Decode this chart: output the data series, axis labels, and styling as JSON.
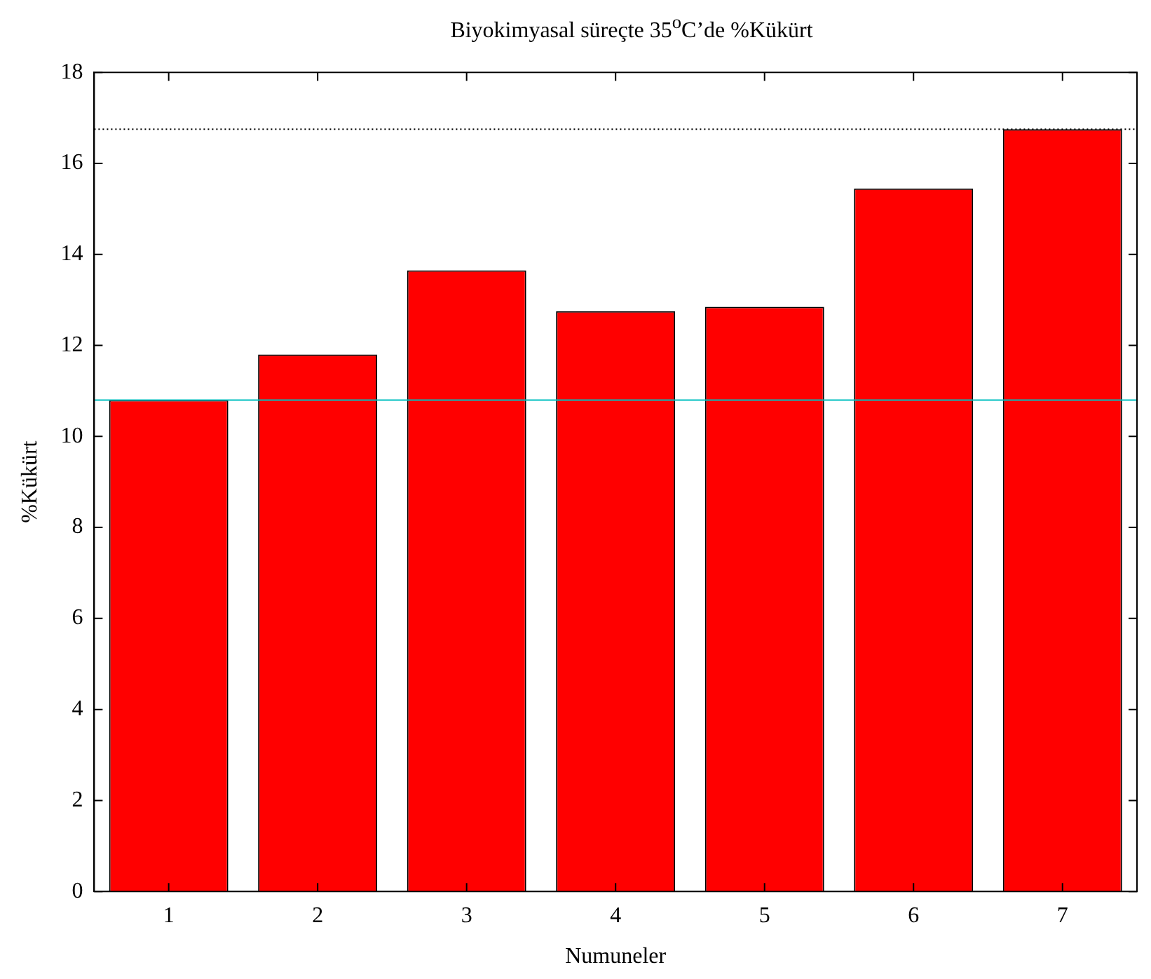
{
  "chart_data": {
    "type": "bar",
    "title": "Biyokimyasal süreçte 35$^{o}$C’de %Kükürt",
    "xlabel": "Numuneler",
    "ylabel": "%Kükürt",
    "categories": [
      "1",
      "2",
      "3",
      "4",
      "5",
      "6",
      "7"
    ],
    "values": [
      10.8,
      11.8,
      13.65,
      12.75,
      12.85,
      15.45,
      16.75
    ],
    "color": "#ff0000",
    "ylim": [
      0,
      18
    ],
    "yticks": [
      0,
      2,
      4,
      6,
      8,
      10,
      12,
      14,
      16,
      18
    ],
    "grid": false,
    "legend": false,
    "ref_lines": [
      {
        "axis": "y",
        "value": 10.8,
        "color": "#00c0c0",
        "line_style": "solid"
      },
      {
        "axis": "y",
        "value": 16.75,
        "color": "#000000",
        "line_style": "dotted"
      }
    ]
  }
}
